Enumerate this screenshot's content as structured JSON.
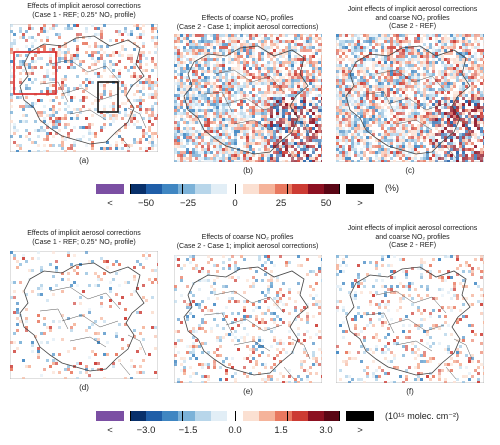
{
  "panels": [
    {
      "id": "a",
      "title_line1": "Effects of implicit aerosol corrections",
      "title_line2": "(Case 1 - REF; 0.25° NO₂ profile)",
      "title_line3": "",
      "label": "(a)"
    },
    {
      "id": "b",
      "title_line1": "Effects of coarse NO₂ profiles",
      "title_line2": "(Case 2 - Case 1; implicit aerosol corrections)",
      "title_line3": "",
      "label": "(b)"
    },
    {
      "id": "c",
      "title_line1": "Joint effects of implicit aerosol corrections",
      "title_line2": "and coarse NO₂ profiles",
      "title_line3": "(Case 2 - REF)",
      "label": "(c)"
    },
    {
      "id": "d",
      "title_line1": "Effects of implicit aerosol corrections",
      "title_line2": "(Case 1 - REF; 0.25° NO₂ profile)",
      "title_line3": "",
      "label": "(d)"
    },
    {
      "id": "e",
      "title_line1": "Effects of coarse NO₂ profiles",
      "title_line2": "(Case 2 - Case 1; implicit aerosol corrections)",
      "title_line3": "",
      "label": "(e)"
    },
    {
      "id": "f",
      "title_line1": "Joint effects of implicit aerosol corrections",
      "title_line2": "and coarse NO₂ profiles",
      "title_line3": "(Case 2 - REF)",
      "label": "(f)"
    }
  ],
  "colorbar_top": {
    "under_label": "<",
    "over_label": ">",
    "ticks": [
      "−50",
      "−25",
      "0",
      "25",
      "50"
    ],
    "unit": "(%)",
    "under_color": "#7b4fa3",
    "over_color": "#000000"
  },
  "colorbar_bottom": {
    "under_label": "<",
    "over_label": ">",
    "ticks": [
      "−3.0",
      "−1.5",
      "0.0",
      "1.5",
      "3.0"
    ],
    "unit": "(10¹⁵ molec. cm⁻²)",
    "under_color": "#7b4fa3",
    "over_color": "#000000"
  },
  "colors": {
    "diverging": [
      "#08306b",
      "#1f5ea8",
      "#3f86c2",
      "#7cb2d8",
      "#b8d6ea",
      "#e2eef6",
      "#ffffff",
      "#fbe0d2",
      "#f5b39a",
      "#e8785f",
      "#cc3b33",
      "#8c1021",
      "#5a0615"
    ],
    "region_box_red": "#d62020",
    "region_box_black": "#111111",
    "border": "#555555"
  }
}
